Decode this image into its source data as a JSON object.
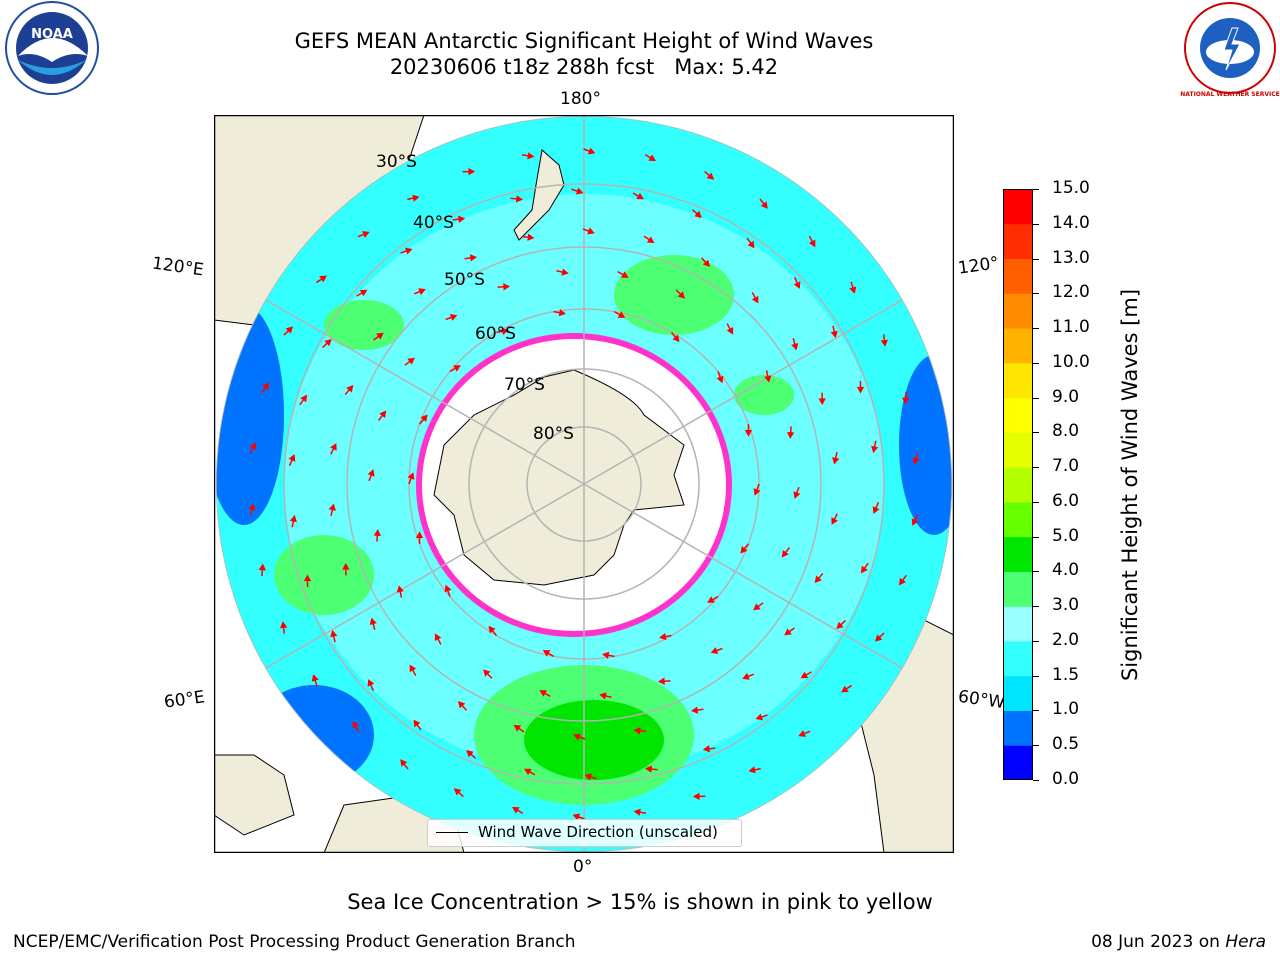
{
  "header": {
    "title_line1": "GEFS MEAN Antarctic Significant Height of Wind Waves",
    "title_line2": "20230606 t18z 288h fcst   Max: 5.42"
  },
  "map": {
    "projection": "south-polar-stereographic",
    "lon_labels": [
      "180°",
      "120°E",
      "120°",
      "60°E",
      "60°W",
      "0°"
    ],
    "lat_labels": [
      "30°S",
      "40°S",
      "50°S",
      "60°S",
      "70°S",
      "80°S"
    ],
    "legend_label": "Wind Wave Direction (unscaled)",
    "colors": {
      "ocean_mid": "#33ffff",
      "ocean_light": "#99ffff",
      "land": "#efecd9",
      "ice": "#ffffff",
      "ice_edge": "#ff33cc",
      "arrows": "#ff0000",
      "grid": "#b4b4b4"
    }
  },
  "colorbar": {
    "label": "Significant Height of Wind Waves [m]",
    "ticks": [
      "0.0",
      "0.5",
      "1.0",
      "1.5",
      "2.0",
      "3.0",
      "4.0",
      "5.0",
      "6.0",
      "7.0",
      "8.0",
      "9.0",
      "10.0",
      "11.0",
      "12.0",
      "13.0",
      "14.0",
      "15.0"
    ],
    "colors": [
      "#0000ff",
      "#0073ff",
      "#00e5ff",
      "#33ffff",
      "#99ffff",
      "#4dff73",
      "#00e600",
      "#66ff00",
      "#b3ff00",
      "#e6ff00",
      "#ffff00",
      "#ffe600",
      "#ffb300",
      "#ff8c00",
      "#ff5f00",
      "#ff2d00",
      "#ff0000"
    ]
  },
  "notes": {
    "ice": "Sea Ice Concentration > 15% is shown in pink to yellow"
  },
  "footer": {
    "left": "NCEP/EMC/Verification Post Processing Product Generation Branch",
    "right_prefix": "08 Jun 2023 on ",
    "right_host": "Hera"
  },
  "logos": {
    "noaa": "NOAA",
    "nws": "NATIONAL WEATHER SERVICE"
  }
}
